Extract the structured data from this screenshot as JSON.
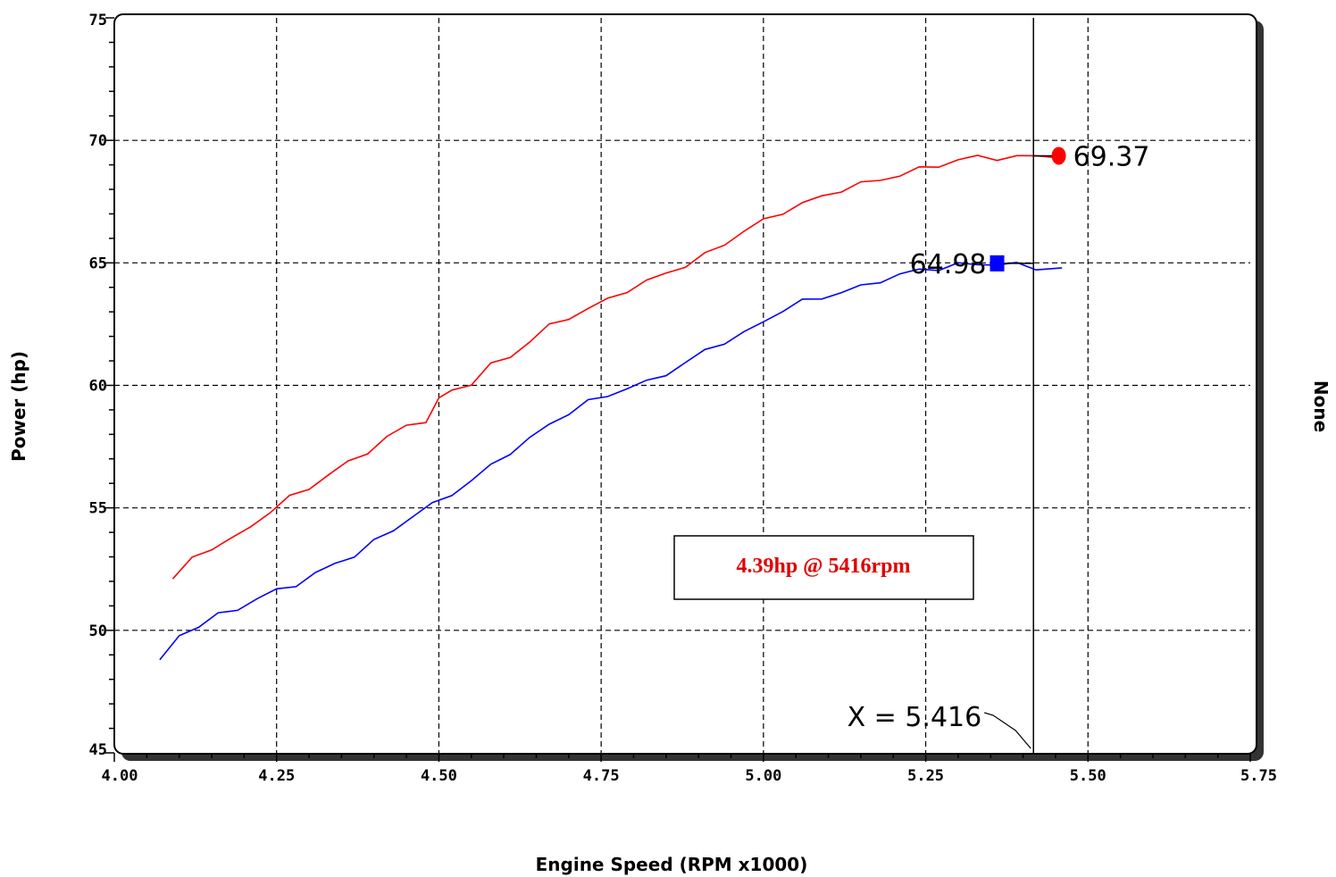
{
  "chart_data": {
    "type": "line",
    "xlabel": "Engine Speed (RPM x1000)",
    "ylabel": "Power (hp)",
    "right_label": "None",
    "xlim": [
      4.0,
      5.75
    ],
    "ylim": [
      45,
      75
    ],
    "x_ticks": [
      "4.00",
      "4.25",
      "4.50",
      "4.75",
      "5.00",
      "5.25",
      "5.50",
      "5.75"
    ],
    "y_ticks": [
      "45",
      "50",
      "55",
      "60",
      "65",
      "70",
      "75"
    ],
    "grid": true,
    "series": [
      {
        "color": "#ff0000",
        "x": [
          4.09,
          4.12,
          4.15,
          4.18,
          4.21,
          4.24,
          4.27,
          4.3,
          4.33,
          4.36,
          4.39,
          4.42,
          4.45,
          4.48,
          4.5,
          4.52,
          4.55,
          4.58,
          4.61,
          4.64,
          4.67,
          4.7,
          4.73,
          4.76,
          4.79,
          4.82,
          4.85,
          4.88,
          4.91,
          4.94,
          4.97,
          5.0,
          5.03,
          5.06,
          5.09,
          5.12,
          5.15,
          5.18,
          5.21,
          5.24,
          5.27,
          5.3,
          5.33,
          5.36,
          5.39,
          5.42,
          5.46
        ],
        "y": [
          52.1,
          52.9,
          53.4,
          53.7,
          54.2,
          54.9,
          55.4,
          55.8,
          56.4,
          56.8,
          57.3,
          57.9,
          58.3,
          58.6,
          59.4,
          59.8,
          60.1,
          60.8,
          61.2,
          61.8,
          62.4,
          62.8,
          63.1,
          63.5,
          63.9,
          64.2,
          64.6,
          64.9,
          65.3,
          65.8,
          66.3,
          66.7,
          67.1,
          67.4,
          67.7,
          68.0,
          68.2,
          68.4,
          68.6,
          68.8,
          69.0,
          69.2,
          69.3,
          69.3,
          69.3,
          69.35,
          69.37
        ]
      },
      {
        "color": "#0000ff",
        "x": [
          4.07,
          4.1,
          4.13,
          4.16,
          4.19,
          4.22,
          4.25,
          4.28,
          4.31,
          4.34,
          4.37,
          4.4,
          4.43,
          4.46,
          4.49,
          4.52,
          4.55,
          4.58,
          4.61,
          4.64,
          4.67,
          4.7,
          4.73,
          4.76,
          4.79,
          4.82,
          4.85,
          4.88,
          4.91,
          4.94,
          4.97,
          5.0,
          5.03,
          5.06,
          5.09,
          5.12,
          5.15,
          5.18,
          5.21,
          5.24,
          5.27,
          5.3,
          5.33,
          5.36,
          5.39,
          5.42,
          5.46
        ],
        "y": [
          48.7,
          49.8,
          50.2,
          50.6,
          50.9,
          51.3,
          51.6,
          51.9,
          52.3,
          52.7,
          53.1,
          53.6,
          54.1,
          54.7,
          55.1,
          55.6,
          56.1,
          56.7,
          57.3,
          57.8,
          58.4,
          58.9,
          59.3,
          59.6,
          59.9,
          60.1,
          60.5,
          60.9,
          61.4,
          61.8,
          62.1,
          62.6,
          63.1,
          63.4,
          63.6,
          63.8,
          64.0,
          64.3,
          64.5,
          64.7,
          64.8,
          64.9,
          64.95,
          64.98,
          64.9,
          64.8,
          64.8
        ]
      }
    ],
    "markers": [
      {
        "x": 5.455,
        "y": 69.37,
        "color": "#ff0000",
        "label": "69.37"
      },
      {
        "x": 5.36,
        "y": 64.98,
        "color": "#0000ff",
        "label": "64.98"
      }
    ],
    "cursor": {
      "x": 5.416,
      "label": "X = 5.416"
    },
    "annotation": "4.39hp @ 5416rpm"
  }
}
